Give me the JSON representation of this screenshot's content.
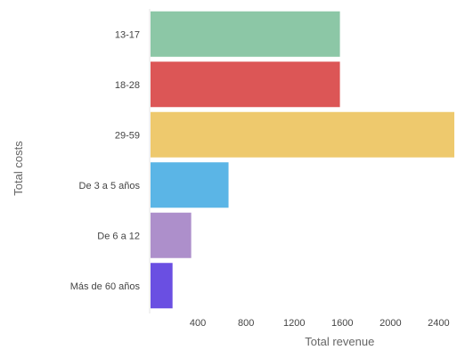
{
  "chart_data": {
    "type": "bar",
    "orientation": "horizontal",
    "title": "",
    "xlabel": "Total revenue",
    "ylabel": "Total costs",
    "categories": [
      "13-17",
      "18-28",
      "29-59",
      "De 3 a 5 años",
      "De 6 a 12",
      "Más de 60 años"
    ],
    "values": [
      1580,
      1580,
      2530,
      655,
      345,
      190
    ],
    "colors": [
      "#8cc7a6",
      "#dc5656",
      "#eec96d",
      "#5bb5e6",
      "#ad8fcb",
      "#6a4fe2"
    ],
    "x_ticks": [
      "400",
      "800",
      "1200",
      "1600",
      "2000",
      "2400"
    ],
    "xlim": [
      0,
      2530
    ],
    "grid": false,
    "legend": "none"
  }
}
